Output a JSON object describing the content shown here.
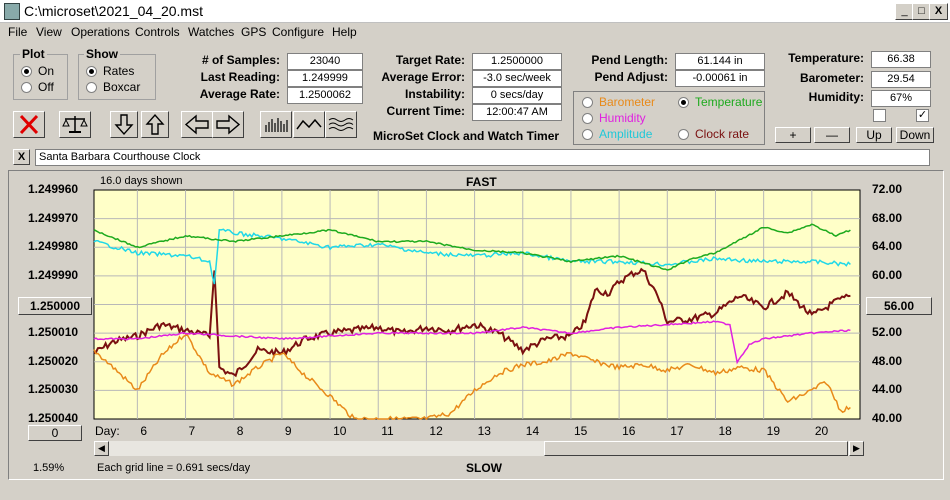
{
  "window": {
    "title": "C:\\microset\\2021_04_20.mst",
    "minimize": "_",
    "maximize": "□",
    "close": "X"
  },
  "menu": [
    "File",
    "View",
    "Operations",
    "Controls",
    "Watches",
    "GPS",
    "Configure",
    "Help"
  ],
  "plot_group": {
    "title": "Plot",
    "on": "On",
    "off": "Off",
    "selected": "On"
  },
  "show_group": {
    "title": "Show",
    "rates": "Rates",
    "boxcar": "Boxcar",
    "selected": "Rates"
  },
  "stats": {
    "samples_label": "# of Samples:",
    "samples": "23040",
    "last_label": "Last Reading:",
    "last": "1.249999",
    "avg_rate_label": "Average Rate:",
    "avg_rate": "1.2500062"
  },
  "target": {
    "target_label": "Target Rate:",
    "target": "1.2500000",
    "avg_err_label": "Average Error:",
    "avg_err": "-3.0 sec/week",
    "instab_label": "Instability:",
    "instab": "0 secs/day",
    "time_label": "Current Time:",
    "time": "12:00:47 AM"
  },
  "app_caption": "MicroSet Clock and Watch Timer",
  "pendulum": {
    "length_label": "Pend Length:",
    "length": "61.144 in",
    "adjust_label": "Pend Adjust:",
    "adjust": "-0.00061 in"
  },
  "aux_select": {
    "barometer": "Barometer",
    "temperature": "Temperature",
    "humidity": "Humidity",
    "amplitude": "Amplitude",
    "clock_rate": "Clock rate",
    "selected": "Temperature",
    "colors": {
      "barometer": "#e88a1a",
      "temperature": "#1eaa1e",
      "humidity": "#e020e0",
      "amplitude": "#20d8e8",
      "clock_rate": "#7a1010"
    }
  },
  "environment": {
    "temp_label": "Temperature:",
    "temp": "66.38",
    "baro_label": "Barometer:",
    "baro": "29.54",
    "hum_label": "Humidity:",
    "hum": "67%",
    "check1": false,
    "check2": true
  },
  "scale_buttons": {
    "plus": "+",
    "minus": "—",
    "up": "Up",
    "down": "Down"
  },
  "comment_close": "X",
  "comment": "Santa Barbara Courthouse Clock",
  "chart_info": {
    "days_shown": "16.0 days shown",
    "fast": "FAST",
    "slow": "SLOW",
    "grid_note": "Each grid line = 0.691 secs/day",
    "percent": "1.59%",
    "day_label": "Day:",
    "left_button": "1.250000",
    "right_button": "56.00",
    "bottom_button": "0"
  },
  "chart_data": {
    "type": "line",
    "x_range": [
      5.1,
      21.0
    ],
    "x_ticks": [
      6,
      7,
      8,
      9,
      10,
      11,
      12,
      13,
      14,
      15,
      16,
      17,
      18,
      19,
      20
    ],
    "y_left_ticks": [
      "1.249960",
      "1.249970",
      "1.249980",
      "1.249990",
      "1.250000",
      "1.250010",
      "1.250020",
      "1.250030",
      "1.250040"
    ],
    "y_left_range": [
      1.24996,
      1.25004
    ],
    "y_right_ticks": [
      "72.00",
      "68.00",
      "64.00",
      "60.00",
      "56.00",
      "52.00",
      "48.00",
      "44.00",
      "40.00"
    ],
    "y_right_range": [
      40,
      72
    ],
    "series": [
      {
        "key": "clock_rate",
        "color": "#7a1010",
        "points": [
          [
            5.1,
            1.250017
          ],
          [
            5.5,
            1.250013
          ],
          [
            6.0,
            1.250011
          ],
          [
            6.5,
            1.250007
          ],
          [
            7.0,
            1.250009
          ],
          [
            7.5,
            1.250011
          ],
          [
            7.6,
            1.249987
          ],
          [
            7.7,
            1.250022
          ],
          [
            8.0,
            1.250025
          ],
          [
            8.5,
            1.250016
          ],
          [
            9.0,
            1.250017
          ],
          [
            9.5,
            1.250012
          ],
          [
            10.0,
            1.25001
          ],
          [
            10.5,
            1.250009
          ],
          [
            11.0,
            1.250008
          ],
          [
            11.5,
            1.25001
          ],
          [
            12.0,
            1.250008
          ],
          [
            12.5,
            1.250009
          ],
          [
            13.0,
            1.250007
          ],
          [
            13.5,
            1.25001
          ],
          [
            14.0,
            1.250016
          ],
          [
            14.5,
            1.250012
          ],
          [
            15.0,
            1.250011
          ],
          [
            15.3,
            1.250006
          ],
          [
            15.5,
            1.249995
          ],
          [
            15.8,
            1.249996
          ],
          [
            16.0,
            1.249992
          ],
          [
            16.3,
            1.249989
          ],
          [
            16.5,
            1.249988
          ],
          [
            16.8,
            1.249997
          ],
          [
            17.0,
            1.250006
          ],
          [
            17.5,
            1.250005
          ],
          [
            18.0,
            1.250003
          ],
          [
            18.5,
            1.249997
          ],
          [
            19.0,
            1.250001
          ],
          [
            19.5,
            1.249996
          ],
          [
            20.0,
            1.250004
          ],
          [
            20.5,
            1.249999
          ],
          [
            20.8,
            1.249997
          ]
        ]
      },
      {
        "key": "barometer",
        "color": "#e88a1a",
        "points": [
          [
            5.1,
            1.250016
          ],
          [
            5.5,
            1.250022
          ],
          [
            6.0,
            1.25003
          ],
          [
            6.5,
            1.250018
          ],
          [
            7.0,
            1.25001
          ],
          [
            7.5,
            1.250024
          ],
          [
            8.0,
            1.250028
          ],
          [
            8.5,
            1.250022
          ],
          [
            9.0,
            1.250017
          ],
          [
            9.5,
            1.250025
          ],
          [
            10.0,
            1.250032
          ],
          [
            10.5,
            1.25004
          ],
          [
            11.0,
            1.25004
          ],
          [
            11.5,
            1.25004
          ],
          [
            12.0,
            1.25004
          ],
          [
            12.5,
            1.250038
          ],
          [
            13.0,
            1.25003
          ],
          [
            13.5,
            1.250024
          ],
          [
            14.0,
            1.250021
          ],
          [
            14.5,
            1.25002
          ],
          [
            15.0,
            1.250017
          ],
          [
            15.5,
            1.25002
          ],
          [
            16.0,
            1.250022
          ],
          [
            16.5,
            1.250021
          ],
          [
            17.0,
            1.250023
          ],
          [
            17.5,
            1.250021
          ],
          [
            18.0,
            1.250024
          ],
          [
            18.5,
            1.250022
          ],
          [
            19.0,
            1.250023
          ],
          [
            19.5,
            1.250034
          ],
          [
            20.0,
            1.25003
          ],
          [
            20.3,
            1.250027
          ],
          [
            20.6,
            1.250037
          ],
          [
            20.8,
            1.250036
          ]
        ]
      },
      {
        "key": "humidity",
        "color": "#e020e0",
        "points": [
          [
            5.1,
            1.250012
          ],
          [
            6.0,
            1.250012
          ],
          [
            7.0,
            1.25001
          ],
          [
            8.0,
            1.250011
          ],
          [
            9.0,
            1.250012
          ],
          [
            10.0,
            1.250011
          ],
          [
            11.0,
            1.25001
          ],
          [
            12.0,
            1.25001
          ],
          [
            13.0,
            1.25001
          ],
          [
            14.0,
            1.250008
          ],
          [
            15.0,
            1.25001
          ],
          [
            16.0,
            1.250008
          ],
          [
            17.0,
            1.250007
          ],
          [
            18.0,
            1.250006
          ],
          [
            18.3,
            1.250007
          ],
          [
            18.45,
            1.25002
          ],
          [
            18.7,
            1.250014
          ],
          [
            19.0,
            1.250012
          ],
          [
            20.0,
            1.25001
          ],
          [
            20.8,
            1.250009
          ]
        ]
      },
      {
        "key": "amplitude",
        "color": "#20d8e8",
        "points": [
          [
            5.1,
            1.249978
          ],
          [
            6.0,
            1.249982
          ],
          [
            7.0,
            1.249983
          ],
          [
            7.5,
            1.249985
          ],
          [
            7.6,
            1.249993
          ],
          [
            7.7,
            1.249974
          ],
          [
            8.0,
            1.249975
          ],
          [
            9.0,
            1.249977
          ],
          [
            10.0,
            1.24998
          ],
          [
            11.0,
            1.249979
          ],
          [
            12.0,
            1.249982
          ],
          [
            13.0,
            1.249983
          ],
          [
            14.0,
            1.249982
          ],
          [
            15.0,
            1.249985
          ],
          [
            16.0,
            1.249985
          ],
          [
            17.0,
            1.249986
          ],
          [
            18.0,
            1.249984
          ],
          [
            19.0,
            1.249985
          ],
          [
            20.0,
            1.249985
          ],
          [
            20.8,
            1.249986
          ]
        ]
      },
      {
        "key": "temperature",
        "color": "#1eaa1e",
        "points": [
          [
            5.1,
            1.249974
          ],
          [
            6.0,
            1.24998
          ],
          [
            7.0,
            1.249976
          ],
          [
            8.0,
            1.249978
          ],
          [
            9.0,
            1.249976
          ],
          [
            10.0,
            1.249974
          ],
          [
            11.0,
            1.249978
          ],
          [
            12.0,
            1.249978
          ],
          [
            13.0,
            1.249981
          ],
          [
            14.0,
            1.249982
          ],
          [
            15.0,
            1.249985
          ],
          [
            16.0,
            1.249983
          ],
          [
            17.0,
            1.249988
          ],
          [
            17.5,
            1.249984
          ],
          [
            18.0,
            1.249982
          ],
          [
            19.0,
            1.249973
          ],
          [
            19.5,
            1.249975
          ],
          [
            20.0,
            1.249972
          ],
          [
            20.5,
            1.249976
          ],
          [
            20.8,
            1.249974
          ]
        ]
      }
    ]
  }
}
